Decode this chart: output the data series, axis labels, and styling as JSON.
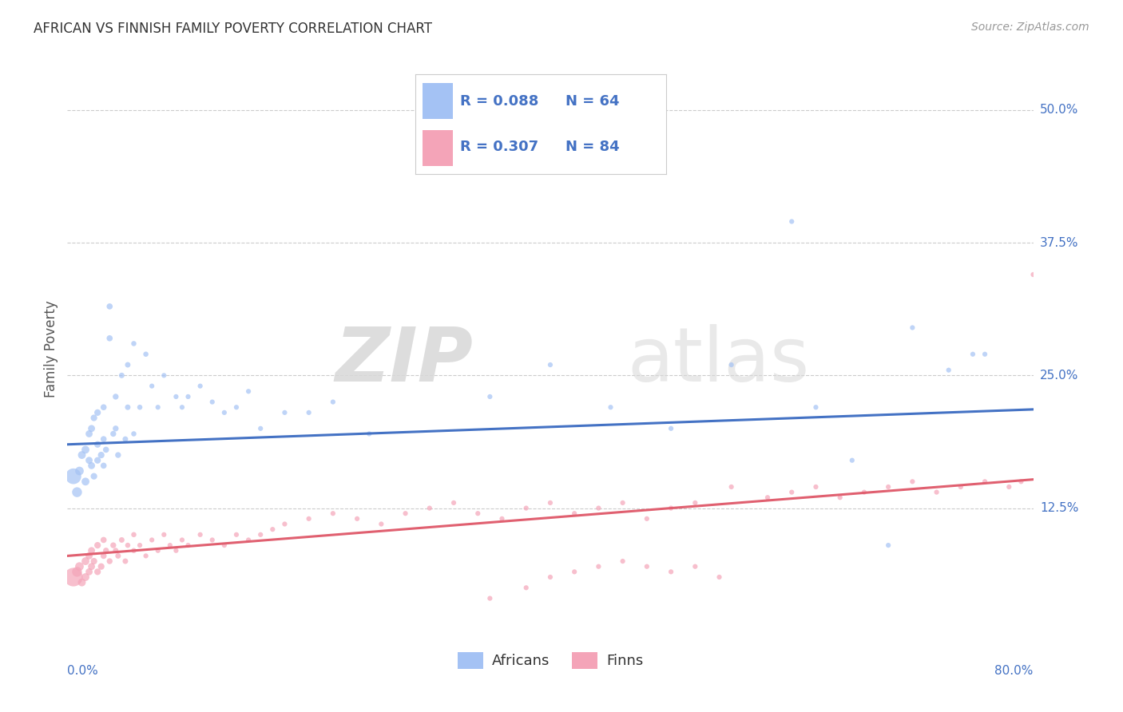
{
  "title": "AFRICAN VS FINNISH FAMILY POVERTY CORRELATION CHART",
  "source": "Source: ZipAtlas.com",
  "ylabel": "Family Poverty",
  "ytick_labels": [
    "12.5%",
    "25.0%",
    "37.5%",
    "50.0%"
  ],
  "ytick_values": [
    0.125,
    0.25,
    0.375,
    0.5
  ],
  "xlim": [
    0.0,
    0.8
  ],
  "ylim": [
    0.0,
    0.55
  ],
  "africans_R": 0.088,
  "africans_N": 64,
  "finns_R": 0.307,
  "finns_N": 84,
  "legend_africans": "Africans",
  "legend_finns": "Finns",
  "blue_color": "#a4c2f4",
  "pink_color": "#f4a4b8",
  "blue_line_color": "#4472c4",
  "pink_line_color": "#e06070",
  "legend_text_color": "#4472c4",
  "background_color": "#ffffff",
  "grid_color": "#cccccc",
  "africans_x": [
    0.005,
    0.008,
    0.01,
    0.012,
    0.015,
    0.015,
    0.018,
    0.018,
    0.02,
    0.02,
    0.022,
    0.022,
    0.025,
    0.025,
    0.025,
    0.028,
    0.03,
    0.03,
    0.03,
    0.032,
    0.035,
    0.035,
    0.038,
    0.04,
    0.04,
    0.042,
    0.045,
    0.048,
    0.05,
    0.05,
    0.055,
    0.055,
    0.06,
    0.065,
    0.07,
    0.075,
    0.08,
    0.09,
    0.095,
    0.1,
    0.11,
    0.12,
    0.13,
    0.14,
    0.15,
    0.16,
    0.18,
    0.2,
    0.22,
    0.25,
    0.3,
    0.35,
    0.4,
    0.45,
    0.5,
    0.55,
    0.6,
    0.62,
    0.65,
    0.68,
    0.7,
    0.73,
    0.75,
    0.76
  ],
  "africans_y": [
    0.155,
    0.14,
    0.16,
    0.175,
    0.15,
    0.18,
    0.17,
    0.195,
    0.165,
    0.2,
    0.155,
    0.21,
    0.17,
    0.185,
    0.215,
    0.175,
    0.165,
    0.19,
    0.22,
    0.18,
    0.285,
    0.315,
    0.195,
    0.2,
    0.23,
    0.175,
    0.25,
    0.19,
    0.22,
    0.26,
    0.195,
    0.28,
    0.22,
    0.27,
    0.24,
    0.22,
    0.25,
    0.23,
    0.22,
    0.23,
    0.24,
    0.225,
    0.215,
    0.22,
    0.235,
    0.2,
    0.215,
    0.215,
    0.225,
    0.195,
    0.45,
    0.23,
    0.26,
    0.22,
    0.2,
    0.26,
    0.395,
    0.22,
    0.17,
    0.09,
    0.295,
    0.255,
    0.27,
    0.27
  ],
  "africans_size": [
    200,
    80,
    60,
    50,
    50,
    50,
    40,
    40,
    40,
    40,
    35,
    35,
    35,
    35,
    35,
    35,
    30,
    30,
    30,
    30,
    30,
    30,
    28,
    28,
    28,
    28,
    25,
    25,
    25,
    25,
    22,
    22,
    22,
    22,
    20,
    20,
    20,
    20,
    20,
    20,
    20,
    20,
    20,
    20,
    20,
    20,
    20,
    20,
    20,
    20,
    20,
    20,
    20,
    20,
    20,
    20,
    20,
    20,
    20,
    20,
    20,
    20,
    20,
    20
  ],
  "finns_x": [
    0.005,
    0.008,
    0.01,
    0.012,
    0.015,
    0.015,
    0.018,
    0.018,
    0.02,
    0.02,
    0.022,
    0.025,
    0.025,
    0.028,
    0.03,
    0.03,
    0.032,
    0.035,
    0.038,
    0.04,
    0.042,
    0.045,
    0.048,
    0.05,
    0.055,
    0.055,
    0.06,
    0.065,
    0.07,
    0.075,
    0.08,
    0.085,
    0.09,
    0.095,
    0.1,
    0.11,
    0.12,
    0.13,
    0.14,
    0.15,
    0.16,
    0.17,
    0.18,
    0.2,
    0.22,
    0.24,
    0.26,
    0.28,
    0.3,
    0.32,
    0.34,
    0.36,
    0.38,
    0.4,
    0.42,
    0.44,
    0.46,
    0.48,
    0.5,
    0.52,
    0.55,
    0.58,
    0.6,
    0.62,
    0.64,
    0.66,
    0.68,
    0.7,
    0.72,
    0.74,
    0.76,
    0.78,
    0.79,
    0.8,
    0.35,
    0.38,
    0.4,
    0.42,
    0.44,
    0.46,
    0.48,
    0.5,
    0.52,
    0.54
  ],
  "finns_y": [
    0.06,
    0.065,
    0.07,
    0.055,
    0.075,
    0.06,
    0.065,
    0.08,
    0.07,
    0.085,
    0.075,
    0.065,
    0.09,
    0.07,
    0.08,
    0.095,
    0.085,
    0.075,
    0.09,
    0.085,
    0.08,
    0.095,
    0.075,
    0.09,
    0.085,
    0.1,
    0.09,
    0.08,
    0.095,
    0.085,
    0.1,
    0.09,
    0.085,
    0.095,
    0.09,
    0.1,
    0.095,
    0.09,
    0.1,
    0.095,
    0.1,
    0.105,
    0.11,
    0.115,
    0.12,
    0.115,
    0.11,
    0.12,
    0.125,
    0.13,
    0.12,
    0.115,
    0.125,
    0.13,
    0.12,
    0.125,
    0.13,
    0.115,
    0.125,
    0.13,
    0.145,
    0.135,
    0.14,
    0.145,
    0.135,
    0.14,
    0.145,
    0.15,
    0.14,
    0.145,
    0.15,
    0.145,
    0.15,
    0.345,
    0.04,
    0.05,
    0.06,
    0.065,
    0.07,
    0.075,
    0.07,
    0.065,
    0.07,
    0.06
  ],
  "finns_size": [
    280,
    80,
    60,
    50,
    50,
    50,
    40,
    40,
    40,
    40,
    35,
    35,
    35,
    35,
    30,
    30,
    28,
    28,
    28,
    25,
    25,
    25,
    25,
    22,
    22,
    22,
    20,
    20,
    20,
    20,
    20,
    20,
    20,
    20,
    20,
    20,
    20,
    20,
    20,
    20,
    20,
    20,
    20,
    20,
    20,
    20,
    20,
    20,
    20,
    20,
    20,
    20,
    20,
    20,
    20,
    20,
    20,
    20,
    20,
    20,
    20,
    20,
    20,
    20,
    20,
    20,
    20,
    20,
    20,
    20,
    20,
    20,
    20,
    20,
    20,
    20,
    20,
    20,
    20,
    20,
    20,
    20,
    20,
    20
  ],
  "af_line_y0": 0.185,
  "af_line_y1": 0.218,
  "fi_line_y0": 0.08,
  "fi_line_y1": 0.152
}
